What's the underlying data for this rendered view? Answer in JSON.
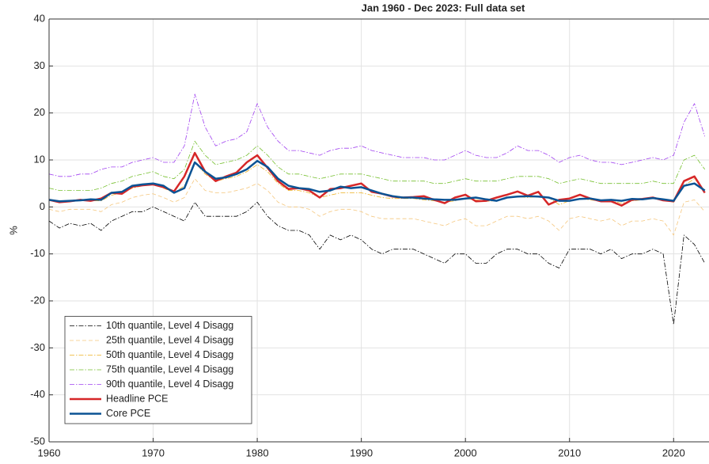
{
  "chart_data": {
    "type": "line",
    "title": "Jan 1960 - Dec 2023: Full data set",
    "y_label": "%",
    "x": [
      1960,
      1961,
      1962,
      1963,
      1964,
      1965,
      1966,
      1967,
      1968,
      1969,
      1970,
      1971,
      1972,
      1973,
      1974,
      1975,
      1976,
      1977,
      1978,
      1979,
      1980,
      1981,
      1982,
      1983,
      1984,
      1985,
      1986,
      1987,
      1988,
      1989,
      1990,
      1991,
      1992,
      1993,
      1994,
      1995,
      1996,
      1997,
      1998,
      1999,
      2000,
      2001,
      2002,
      2003,
      2004,
      2005,
      2006,
      2007,
      2008,
      2009,
      2010,
      2011,
      2012,
      2013,
      2014,
      2015,
      2016,
      2017,
      2018,
      2019,
      2020,
      2021,
      2022,
      2023
    ],
    "series": [
      {
        "name": "10th quantile, Level 4 Disagg",
        "color": "#000000",
        "linestyle": "dashdot",
        "linewidth": 0.8,
        "values": [
          -3,
          -4.5,
          -3.5,
          -4,
          -3.5,
          -5,
          -3,
          -2,
          -1,
          -1,
          0,
          -1,
          -2,
          -3,
          1,
          -2,
          -2,
          -2,
          -2,
          -1,
          1,
          -2,
          -4,
          -5,
          -5,
          -6,
          -9,
          -6,
          -7,
          -6,
          -7,
          -9,
          -10,
          -9,
          -9,
          -9,
          -10,
          -11,
          -12,
          -10,
          -10,
          -12,
          -12,
          -10,
          -9,
          -9,
          -10,
          -10,
          -12,
          -13,
          -9,
          -9,
          -9,
          -10,
          -9,
          -11,
          -10,
          -10,
          -9,
          -10,
          -25,
          -6,
          -8,
          -12
        ]
      },
      {
        "name": "25th quantile, Level 4 Disagg",
        "color": "#f5c77e",
        "linestyle": "dashed",
        "linewidth": 0.8,
        "values": [
          -0.5,
          -1,
          -0.5,
          -0.5,
          -0.5,
          -1,
          0.5,
          1,
          2,
          2.5,
          2.8,
          2,
          1,
          2,
          6,
          3.5,
          3,
          3,
          3.5,
          4,
          5,
          3.5,
          1,
          0,
          0,
          -0.5,
          -2,
          -1,
          -0.5,
          -0.5,
          -1,
          -2,
          -2.5,
          -2.5,
          -2.5,
          -2.5,
          -3,
          -3.5,
          -4,
          -3,
          -2.5,
          -4,
          -4,
          -3,
          -2,
          -2,
          -2.5,
          -2,
          -3,
          -5,
          -2.5,
          -2,
          -2.5,
          -3,
          -2.5,
          -4,
          -3,
          -3,
          -2.5,
          -3,
          -6,
          1,
          1.5,
          -1
        ]
      },
      {
        "name": "50th quantile, Level 4 Disagg",
        "color": "#edb120",
        "linestyle": "dashdot",
        "linewidth": 0.8,
        "values": [
          1.5,
          1.3,
          1.3,
          1.3,
          1.3,
          1.3,
          2.5,
          3,
          4,
          4.5,
          5,
          4,
          3,
          4.5,
          9.5,
          7,
          5.5,
          6,
          6.5,
          7.5,
          9,
          7.5,
          5,
          3.5,
          3.5,
          3,
          2,
          2.5,
          3,
          3,
          3,
          2.5,
          2,
          1.8,
          1.8,
          1.8,
          1.5,
          1.3,
          1,
          1.3,
          1.8,
          1.5,
          1.2,
          1.3,
          2,
          2.2,
          2,
          2.2,
          2,
          0.5,
          1.3,
          1.8,
          1.5,
          1.2,
          1.3,
          0.8,
          1.3,
          1.5,
          1.8,
          1.5,
          1,
          4.5,
          6,
          3.5
        ]
      },
      {
        "name": "75th quantile, Level 4 Disagg",
        "color": "#77c030",
        "linestyle": "dashdot",
        "linewidth": 0.8,
        "values": [
          4,
          3.5,
          3.5,
          3.5,
          3.5,
          4,
          5,
          5.5,
          6.5,
          7,
          7.5,
          6.5,
          6,
          8,
          14,
          11,
          9,
          9.5,
          10,
          11,
          13,
          11,
          8.5,
          7,
          7,
          6.5,
          6,
          6.5,
          7,
          7,
          7,
          6.5,
          6,
          5.5,
          5.5,
          5.5,
          5.5,
          5,
          5,
          5.5,
          6,
          5.5,
          5.5,
          5.5,
          6,
          6.5,
          6.5,
          6.5,
          6,
          5,
          5.5,
          6,
          5.5,
          5,
          5,
          5,
          5,
          5,
          5.5,
          5,
          5,
          10,
          11,
          8
        ]
      },
      {
        "name": "90th quantile, Level 4 Disagg",
        "color": "#a040f0",
        "linestyle": "dashdot",
        "linewidth": 0.8,
        "values": [
          7,
          6.5,
          6.5,
          7,
          7,
          8,
          8.5,
          8.5,
          9.5,
          10,
          10.5,
          9.5,
          9.5,
          13,
          24,
          17,
          13,
          14,
          14.5,
          16,
          22,
          17,
          14,
          12,
          12,
          11.5,
          11,
          12,
          12.5,
          12.5,
          13,
          12,
          11.5,
          11,
          10.5,
          10.5,
          10.5,
          10,
          10,
          11,
          12,
          11,
          10.5,
          10.5,
          11.5,
          13,
          12,
          12,
          11,
          9.5,
          10.5,
          11,
          10,
          9.5,
          9.5,
          9,
          9.5,
          10,
          10.5,
          10,
          11,
          18,
          22,
          15
        ]
      },
      {
        "name": "Headline PCE",
        "color": "#d62728",
        "linestyle": "solid",
        "linewidth": 2.5,
        "values": [
          1.5,
          1,
          1.2,
          1.5,
          1.3,
          1.8,
          3,
          2.8,
          4.3,
          4.6,
          4.8,
          4.2,
          3.3,
          6.5,
          11.5,
          7.5,
          5.5,
          6.5,
          7.3,
          9.5,
          11,
          8.3,
          5.5,
          3.8,
          4,
          3.5,
          2,
          3.8,
          4,
          4.5,
          5,
          3.2,
          2.8,
          2.2,
          2,
          2.1,
          2.3,
          1.5,
          0.8,
          2,
          2.6,
          1.2,
          1.3,
          2,
          2.6,
          3.3,
          2.4,
          3.2,
          0.5,
          1.5,
          1.8,
          2.6,
          1.8,
          1.2,
          1.2,
          0.3,
          1.5,
          1.7,
          2,
          1.4,
          1.2,
          5.5,
          6.5,
          3
        ]
      },
      {
        "name": "Core PCE",
        "color": "#0b5394",
        "linestyle": "solid",
        "linewidth": 2.5,
        "values": [
          1.5,
          1.2,
          1.3,
          1.4,
          1.6,
          1.5,
          3,
          3.2,
          4.5,
          4.8,
          5,
          4.5,
          3,
          4,
          9.5,
          7.5,
          6,
          6.3,
          7,
          8,
          9.8,
          8.5,
          6,
          4.5,
          4,
          3.8,
          3.2,
          3.5,
          4.3,
          4,
          4.2,
          3.5,
          2.8,
          2.3,
          2,
          2,
          1.8,
          1.6,
          1.5,
          1.5,
          1.8,
          2,
          1.6,
          1.3,
          2,
          2.2,
          2.3,
          2.2,
          2,
          1.3,
          1.3,
          1.7,
          1.8,
          1.4,
          1.5,
          1.3,
          1.7,
          1.6,
          1.9,
          1.6,
          1.3,
          4.5,
          5,
          3.5
        ]
      }
    ],
    "xlim": [
      1960,
      2023.4
    ],
    "ylim": [
      -50,
      40
    ],
    "xticks": [
      1960,
      1970,
      1980,
      1990,
      2000,
      2010,
      2020
    ],
    "yticks": [
      -50,
      -40,
      -30,
      -20,
      -10,
      0,
      10,
      20,
      30,
      40
    ],
    "grid": true,
    "legend": "lower left"
  }
}
